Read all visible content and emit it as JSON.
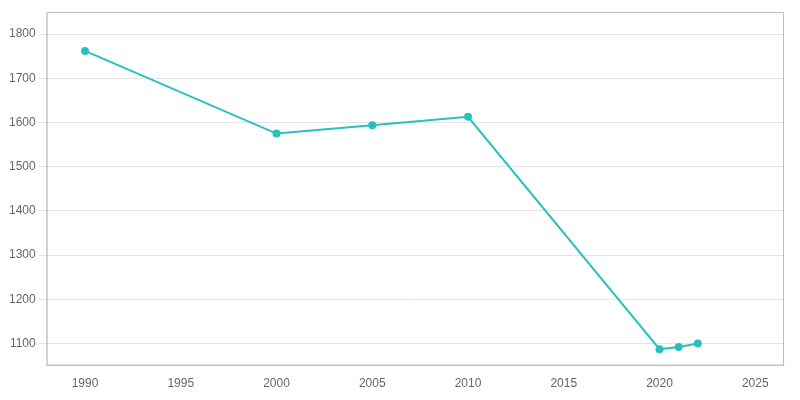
{
  "chart_data": {
    "type": "line",
    "x": [
      1990,
      2000,
      2005,
      2010,
      2020,
      2021,
      2022
    ],
    "values": [
      1762,
      1575,
      1594,
      1613,
      1087,
      1092,
      1100
    ],
    "color": "#2ABFBF",
    "marker": "circle",
    "xlim": [
      1988,
      2026.5
    ],
    "ylim": [
      1050,
      1850
    ],
    "xticks": [
      1990,
      1995,
      2000,
      2005,
      2010,
      2015,
      2020,
      2025
    ],
    "yticks": [
      1100,
      1200,
      1300,
      1400,
      1500,
      1600,
      1700,
      1800
    ],
    "grid": "y"
  }
}
